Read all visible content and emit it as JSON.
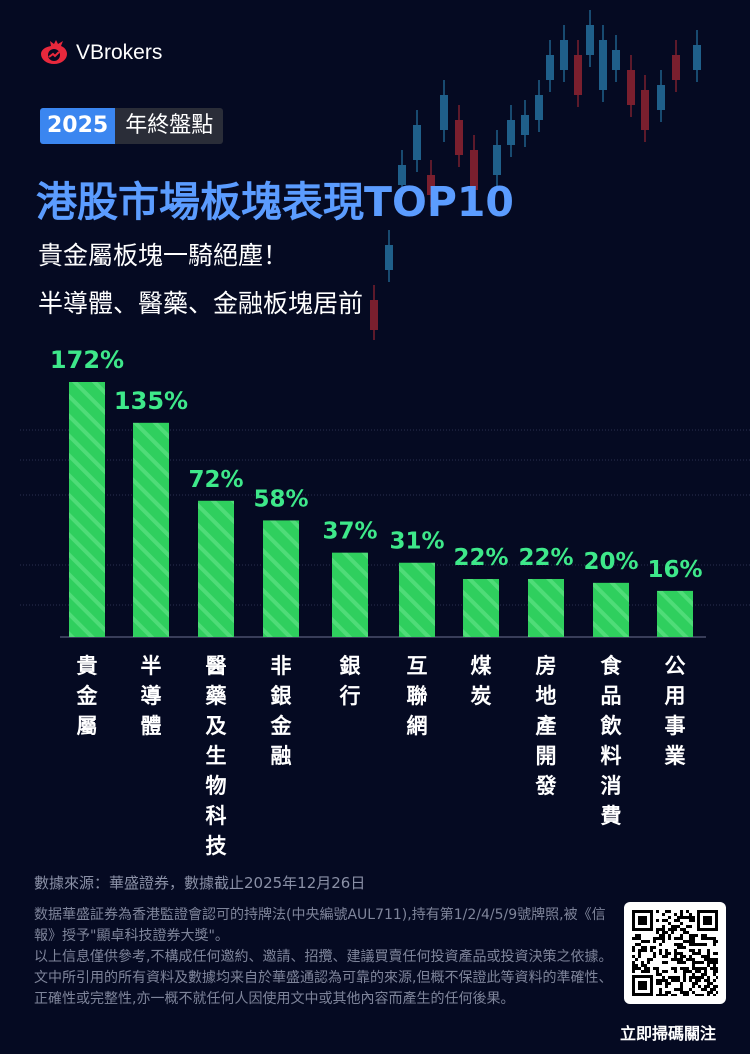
{
  "brand": {
    "name": "VBrokers",
    "accent": "#e8283c"
  },
  "badge": {
    "year": "2025",
    "text": "年終盤點"
  },
  "title": "港股市場板塊表現TOP10",
  "subtitle": [
    "貴金屬板塊一騎絕塵！",
    "半導體、醫藥、金融板塊居前"
  ],
  "chart_data": {
    "type": "bar",
    "categories": [
      "貴金屬",
      "半導體",
      "醫藥及生物科技",
      "非銀金融",
      "銀行",
      "互聯網",
      "煤炭",
      "房地產開發",
      "食品飲料消費",
      "公用事業"
    ],
    "values": [
      172,
      135,
      72,
      58,
      37,
      31,
      22,
      22,
      20,
      16
    ],
    "labels": [
      "172%",
      "135%",
      "72%",
      "58%",
      "37%",
      "31%",
      "22%",
      "22%",
      "20%",
      "16%"
    ],
    "bar_color": "#2fcf5e",
    "label_color": "#3ee88a"
  },
  "footer": {
    "source": "數據來源：華盛證券，數據截止2025年12月26日",
    "disclaimer": [
      "数据華盛証券為香港監證會認可的持牌法(中央編號AUL711),持有第1/2/4/5/9號牌照,被《信報》授予\"顯卓科技證券大獎\"。",
      "以上信息僅供參考,不構成任何邀約、邀請、招攬、建議買賣任何投資產品或投資決策之依據。文中所引用的所有資料及數據均来自於華盛通認為可靠的來源,但概不保證此等資料的準確性、正確性或完整性,亦一概不就任何人因使用文中或其他內容而產生的任何後果。"
    ],
    "qr_caption": "立即掃碼關注"
  }
}
